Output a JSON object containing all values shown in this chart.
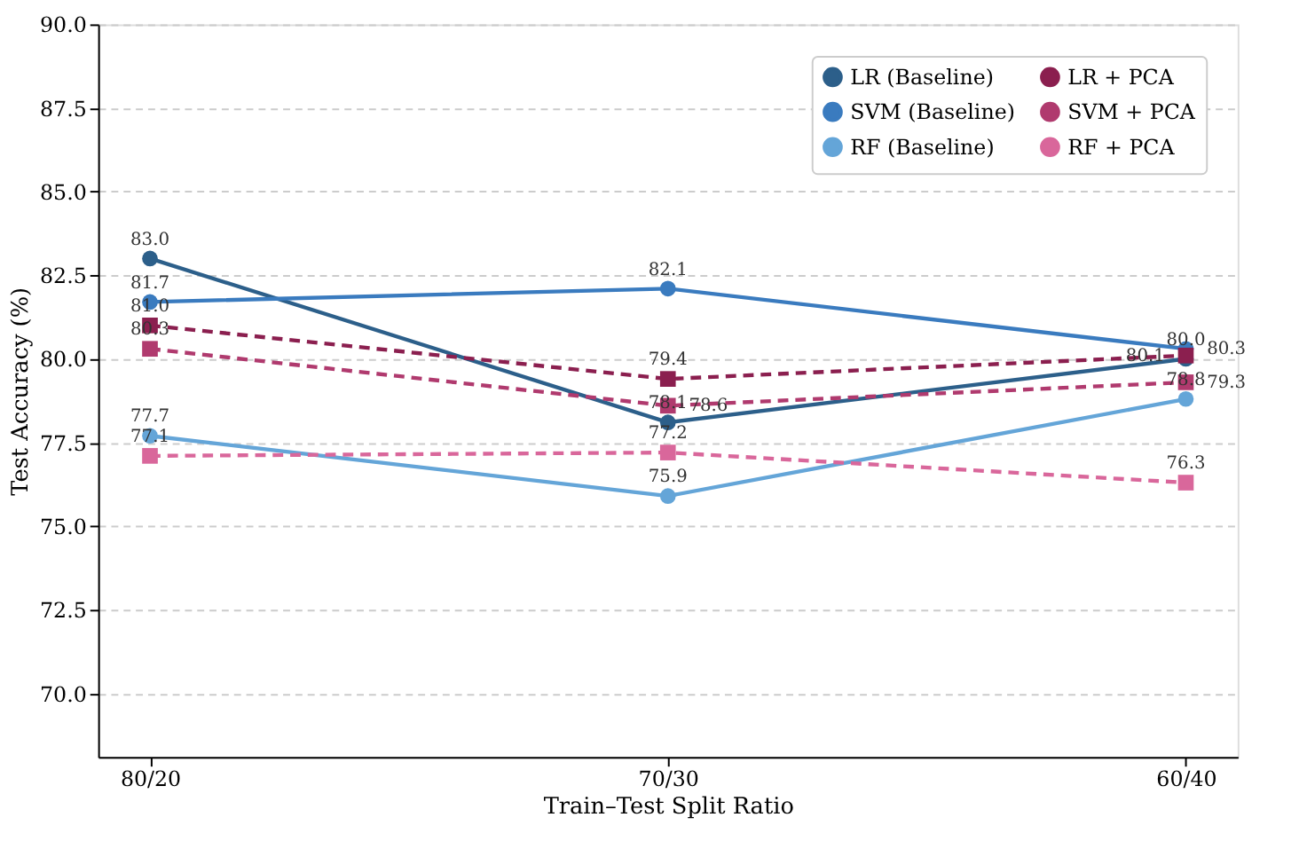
{
  "chart_data": {
    "type": "line",
    "xlabel": "Train–Test Split Ratio",
    "ylabel": "Test Accuracy (%)",
    "categories": [
      "80/20",
      "70/30",
      "60/40"
    ],
    "series": [
      {
        "name": "LR (Baseline)",
        "color": "#2c5f8a",
        "values": [
          83.0,
          78.1,
          80.0
        ],
        "value_labels": [
          "83.0",
          "78.1",
          "80.0"
        ],
        "marker": "circle",
        "line_style": "solid"
      },
      {
        "name": "SVM (Baseline)",
        "color": "#3a7bbf",
        "values": [
          81.7,
          82.1,
          80.3
        ],
        "value_labels": [
          "81.7",
          "82.1",
          "80.3"
        ],
        "marker": "circle",
        "line_style": "solid"
      },
      {
        "name": "RF (Baseline)",
        "color": "#64a5d8",
        "values": [
          77.7,
          75.9,
          78.8
        ],
        "value_labels": [
          "77.7",
          "75.9",
          "78.8"
        ],
        "marker": "circle",
        "line_style": "solid"
      },
      {
        "name": "LR + PCA",
        "color": "#8b1f4f",
        "values": [
          81.0,
          79.4,
          80.1
        ],
        "value_labels": [
          "81.0",
          "79.4",
          "80.1"
        ],
        "marker": "square",
        "line_style": "dashed"
      },
      {
        "name": "SVM + PCA",
        "color": "#b03a6e",
        "values": [
          80.3,
          78.6,
          79.3
        ],
        "value_labels": [
          "80.3",
          "78.6",
          "79.3"
        ],
        "marker": "square",
        "line_style": "dashed"
      },
      {
        "name": "RF + PCA",
        "color": "#d9679b",
        "values": [
          77.1,
          77.2,
          76.3
        ],
        "value_labels": [
          "77.1",
          "77.2",
          "76.3"
        ],
        "marker": "square",
        "line_style": "dashed"
      }
    ],
    "ylim": [
      68.1,
      90.0
    ],
    "yticks": [
      {
        "value": 70,
        "label": "70.0"
      },
      72.5,
      {
        "value": 75,
        "label": "75.0"
      },
      77.5,
      {
        "value": 80,
        "label": "80.0"
      },
      82.5,
      {
        "value": 85,
        "label": "85.0"
      },
      87.5,
      {
        "value": 90,
        "label": "90.0"
      }
    ],
    "grid": "y",
    "legend": "top right",
    "data_labels": true
  }
}
